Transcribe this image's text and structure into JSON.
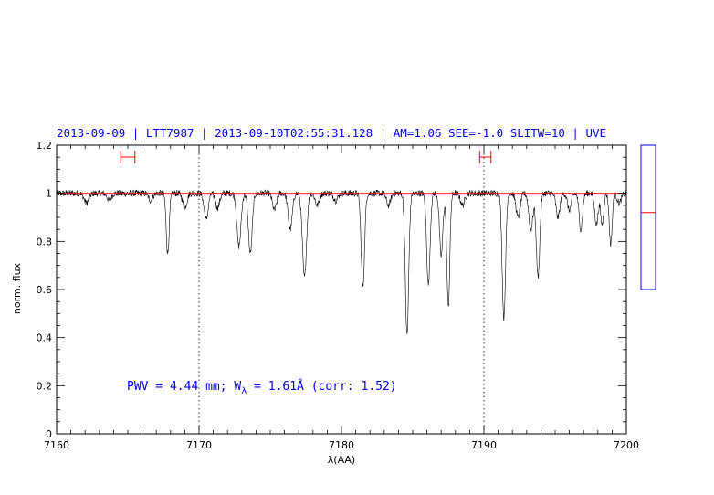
{
  "chart_data": {
    "type": "line",
    "title": "2013-09-09 | LTT7987 | 2013-09-10T02:55:31.128 | AM=1.06 SEE=-1.0 SLITW=10 | UVE",
    "xlabel": "λ(AA)",
    "ylabel": "norm. flux",
    "xlim": [
      7160,
      7200
    ],
    "ylim": [
      0,
      1.2
    ],
    "x_ticks": [
      "7160",
      "7170",
      "7180",
      "7190",
      "7200"
    ],
    "y_ticks": [
      "0",
      "0.2",
      "0.4",
      "0.6",
      "0.8",
      "1",
      "1.2"
    ],
    "continuum_level": 1.0,
    "reference_lines_x": [
      7170,
      7190
    ],
    "window_markers": [
      [
        7164.5,
        7165.5
      ],
      [
        7189.7,
        7190.5
      ]
    ],
    "annotation_prefix": "PWV = 4.44 mm; W",
    "annotation_sub": "λ",
    "annotation_suffix": " = 1.61Å (corr: 1.52)",
    "side_indicator": {
      "ylim": [
        0.6,
        1.2
      ],
      "value": 0.92
    },
    "absorption_lines": [
      {
        "x": 7162.1,
        "depth": 0.04,
        "width": 0.35
      },
      {
        "x": 7163.7,
        "depth": 0.03,
        "width": 0.3
      },
      {
        "x": 7166.6,
        "depth": 0.03,
        "width": 0.3
      },
      {
        "x": 7167.8,
        "depth": 0.25,
        "width": 0.22
      },
      {
        "x": 7169.0,
        "depth": 0.06,
        "width": 0.3
      },
      {
        "x": 7170.5,
        "depth": 0.11,
        "width": 0.3
      },
      {
        "x": 7171.3,
        "depth": 0.06,
        "width": 0.3
      },
      {
        "x": 7172.8,
        "depth": 0.22,
        "width": 0.3
      },
      {
        "x": 7173.6,
        "depth": 0.25,
        "width": 0.28
      },
      {
        "x": 7175.3,
        "depth": 0.07,
        "width": 0.3
      },
      {
        "x": 7176.4,
        "depth": 0.15,
        "width": 0.3
      },
      {
        "x": 7177.4,
        "depth": 0.35,
        "width": 0.3
      },
      {
        "x": 7178.3,
        "depth": 0.05,
        "width": 0.3
      },
      {
        "x": 7179.6,
        "depth": 0.03,
        "width": 0.3
      },
      {
        "x": 7181.5,
        "depth": 0.39,
        "width": 0.25
      },
      {
        "x": 7183.3,
        "depth": 0.05,
        "width": 0.3
      },
      {
        "x": 7184.6,
        "depth": 0.59,
        "width": 0.25
      },
      {
        "x": 7186.1,
        "depth": 0.38,
        "width": 0.25
      },
      {
        "x": 7187.0,
        "depth": 0.26,
        "width": 0.25
      },
      {
        "x": 7187.5,
        "depth": 0.47,
        "width": 0.22
      },
      {
        "x": 7188.5,
        "depth": 0.05,
        "width": 0.3
      },
      {
        "x": 7191.4,
        "depth": 0.52,
        "width": 0.25
      },
      {
        "x": 7192.4,
        "depth": 0.1,
        "width": 0.3
      },
      {
        "x": 7193.3,
        "depth": 0.15,
        "width": 0.3
      },
      {
        "x": 7193.8,
        "depth": 0.35,
        "width": 0.25
      },
      {
        "x": 7195.2,
        "depth": 0.1,
        "width": 0.28
      },
      {
        "x": 7196.0,
        "depth": 0.07,
        "width": 0.28
      },
      {
        "x": 7196.8,
        "depth": 0.15,
        "width": 0.25
      },
      {
        "x": 7197.9,
        "depth": 0.13,
        "width": 0.25
      },
      {
        "x": 7198.3,
        "depth": 0.13,
        "width": 0.22
      },
      {
        "x": 7198.9,
        "depth": 0.21,
        "width": 0.22
      },
      {
        "x": 7199.5,
        "depth": 0.04,
        "width": 0.3
      }
    ],
    "colors": {
      "spectrum": "#000000",
      "continuum": "#ff0000",
      "title": "#0000ff",
      "markers": "#ff0000",
      "indicator_box": "#0000ff"
    }
  }
}
